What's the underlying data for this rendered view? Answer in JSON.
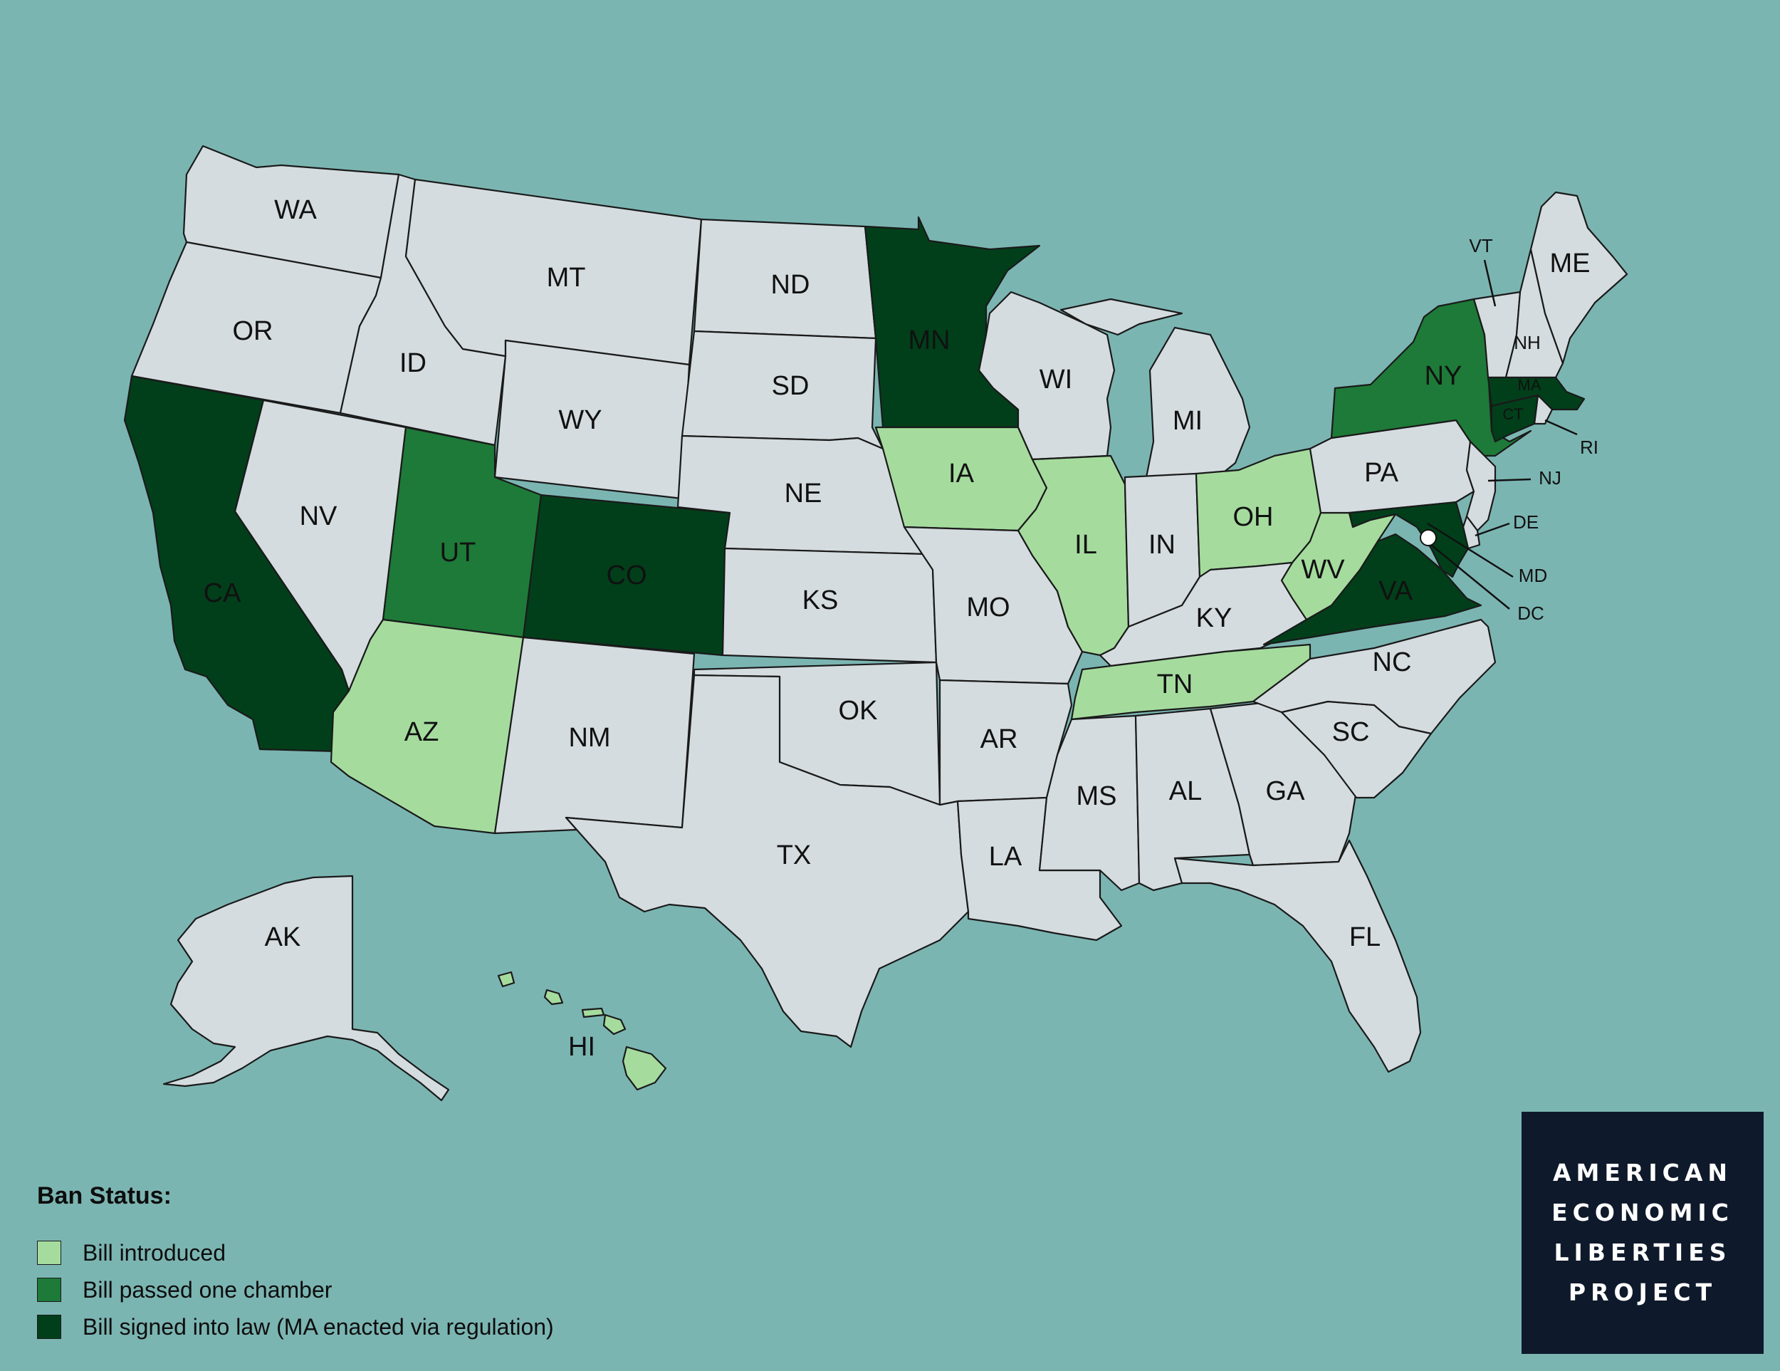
{
  "colors": {
    "background": "#7bb5b2",
    "none": "#d4dcdf",
    "bill_introduced": "#a5dc9e",
    "passed_one_chamber": "#1e7a38",
    "signed_into_law": "#013f1a",
    "logo_background": "#0e1a2b"
  },
  "legend": {
    "title": "Ban Status:",
    "items": [
      {
        "label": "Bill introduced",
        "status": "introduced"
      },
      {
        "label": "Bill passed one chamber",
        "status": "passed"
      },
      {
        "label": "Bill signed into law (MA enacted via regulation)",
        "status": "signed"
      }
    ]
  },
  "logo": {
    "lines": [
      "AMERICAN",
      "ECONOMIC",
      "LIBERTIES",
      "PROJECT"
    ]
  },
  "states": {
    "WA": {
      "label": "WA",
      "status": "none"
    },
    "OR": {
      "label": "OR",
      "status": "none"
    },
    "CA": {
      "label": "CA",
      "status": "signed"
    },
    "NV": {
      "label": "NV",
      "status": "none"
    },
    "ID": {
      "label": "ID",
      "status": "none"
    },
    "MT": {
      "label": "MT",
      "status": "none"
    },
    "WY": {
      "label": "WY",
      "status": "none"
    },
    "UT": {
      "label": "UT",
      "status": "passed"
    },
    "AZ": {
      "label": "AZ",
      "status": "introduced"
    },
    "CO": {
      "label": "CO",
      "status": "signed"
    },
    "NM": {
      "label": "NM",
      "status": "none"
    },
    "ND": {
      "label": "ND",
      "status": "none"
    },
    "SD": {
      "label": "SD",
      "status": "none"
    },
    "NE": {
      "label": "NE",
      "status": "none"
    },
    "KS": {
      "label": "KS",
      "status": "none"
    },
    "OK": {
      "label": "OK",
      "status": "none"
    },
    "TX": {
      "label": "TX",
      "status": "none"
    },
    "MN": {
      "label": "MN",
      "status": "signed"
    },
    "IA": {
      "label": "IA",
      "status": "introduced"
    },
    "MO": {
      "label": "MO",
      "status": "none"
    },
    "AR": {
      "label": "AR",
      "status": "none"
    },
    "LA": {
      "label": "LA",
      "status": "none"
    },
    "WI": {
      "label": "WI",
      "status": "none"
    },
    "IL": {
      "label": "IL",
      "status": "introduced"
    },
    "MI": {
      "label": "MI",
      "status": "none"
    },
    "IN": {
      "label": "IN",
      "status": "none"
    },
    "OH": {
      "label": "OH",
      "status": "introduced"
    },
    "KY": {
      "label": "KY",
      "status": "none"
    },
    "TN": {
      "label": "TN",
      "status": "introduced"
    },
    "MS": {
      "label": "MS",
      "status": "none"
    },
    "AL": {
      "label": "AL",
      "status": "none"
    },
    "GA": {
      "label": "GA",
      "status": "none"
    },
    "FL": {
      "label": "FL",
      "status": "none"
    },
    "SC": {
      "label": "SC",
      "status": "none"
    },
    "NC": {
      "label": "NC",
      "status": "none"
    },
    "VA": {
      "label": "VA",
      "status": "signed"
    },
    "WV": {
      "label": "WV",
      "status": "introduced"
    },
    "PA": {
      "label": "PA",
      "status": "none"
    },
    "NY": {
      "label": "NY",
      "status": "passed"
    },
    "VT": {
      "label": "VT",
      "status": "none"
    },
    "NH": {
      "label": "NH",
      "status": "none"
    },
    "ME": {
      "label": "ME",
      "status": "none"
    },
    "MA": {
      "label": "MA",
      "status": "signed"
    },
    "RI": {
      "label": "RI",
      "status": "none"
    },
    "CT": {
      "label": "CT",
      "status": "signed"
    },
    "NJ": {
      "label": "NJ",
      "status": "none"
    },
    "DE": {
      "label": "DE",
      "status": "none"
    },
    "MD": {
      "label": "MD",
      "status": "signed"
    },
    "DC": {
      "label": "DC",
      "status": "none"
    },
    "AK": {
      "label": "AK",
      "status": "none"
    },
    "HI": {
      "label": "HI",
      "status": "introduced"
    }
  }
}
